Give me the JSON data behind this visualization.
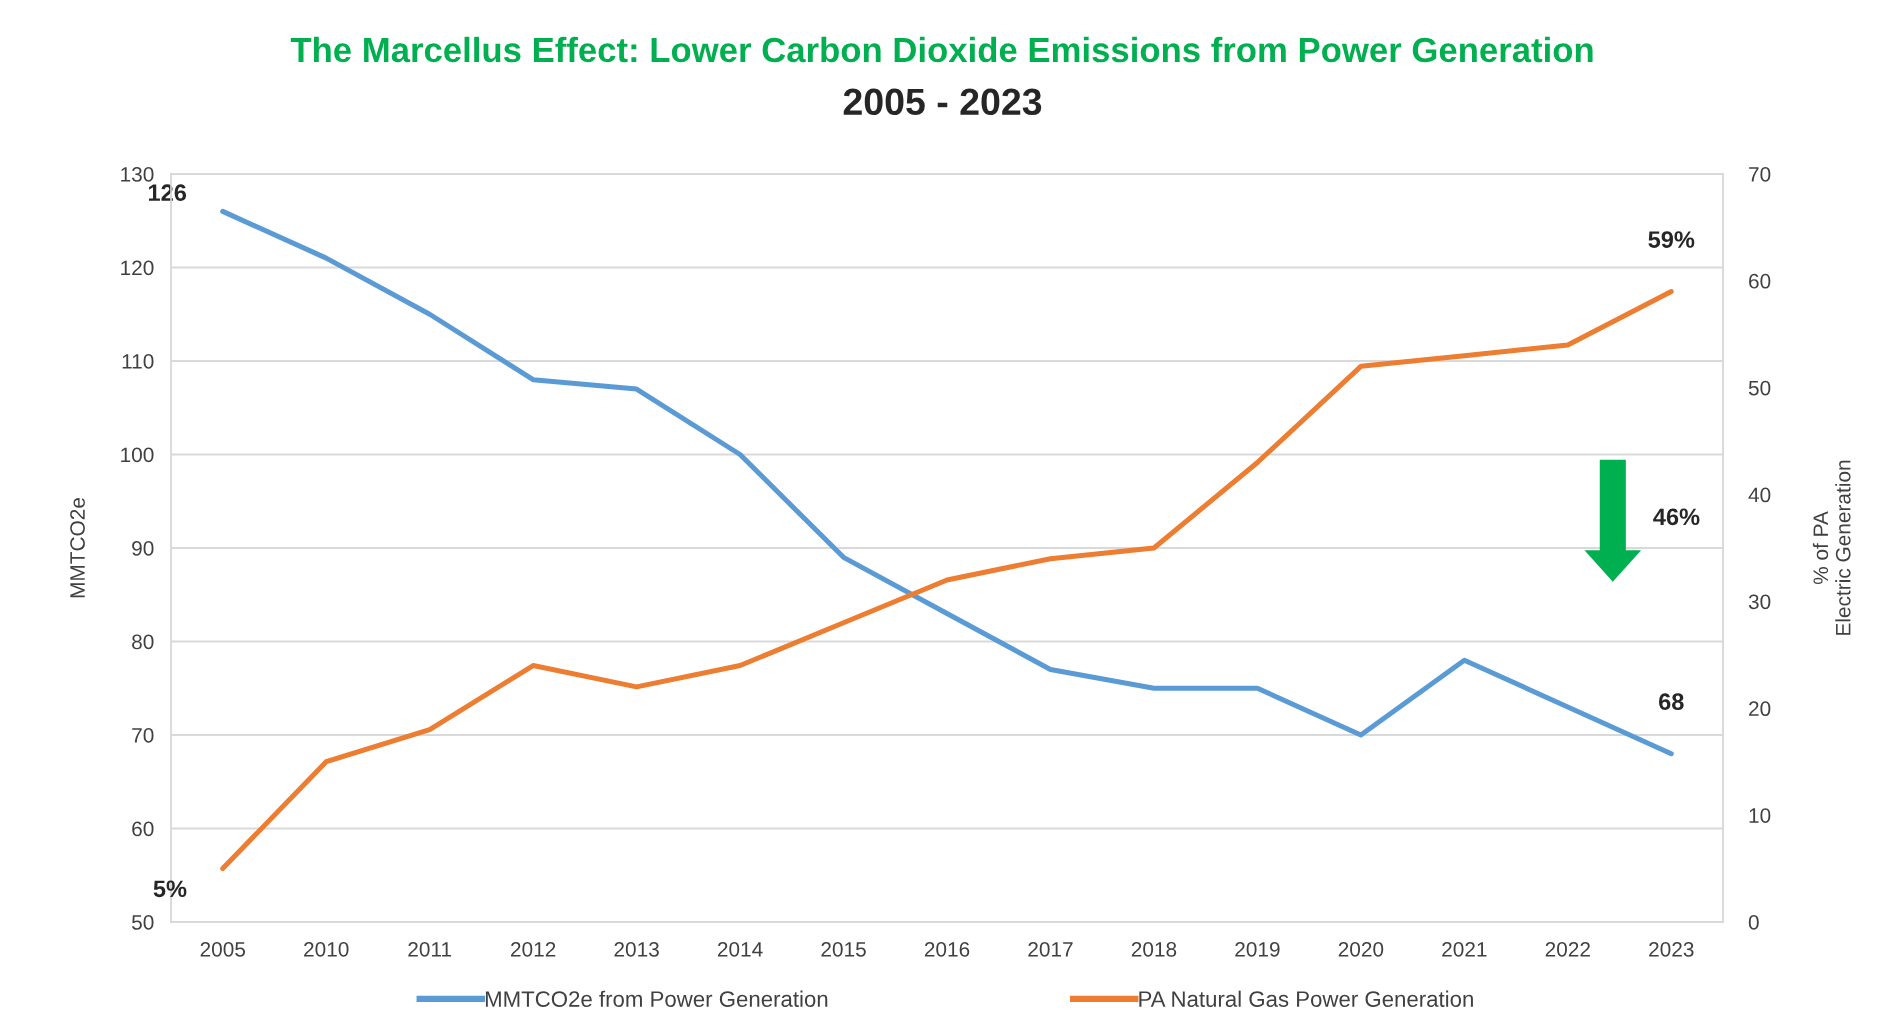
{
  "chart_data": {
    "type": "line",
    "title": "The Marcellus Effect: Lower Carbon Dioxide Emissions from Power Generation",
    "subtitle": "2005 - 2023",
    "ylabel": "MMTCO2e",
    "y2label": "% of PA\nElectric Generation",
    "categories": [
      "2005",
      "2010",
      "2011",
      "2012",
      "2013",
      "2014",
      "2015",
      "2016",
      "2017",
      "2018",
      "2019",
      "2020",
      "2021",
      "2022",
      "2023"
    ],
    "series": [
      {
        "name": "MMTCO2e from Power Generation",
        "color": "#5b9bd5",
        "values": [
          126,
          121,
          115,
          108,
          107,
          100,
          89,
          83,
          77,
          75,
          75,
          70,
          78,
          73,
          68
        ],
        "value_labels": [
          "126",
          null,
          null,
          null,
          null,
          null,
          null,
          null,
          null,
          null,
          null,
          null,
          null,
          null,
          "68"
        ]
      },
      {
        "name": "PA Natural Gas Power Generation",
        "color": "#ed7d31",
        "axis": "y2",
        "values": [
          5,
          15,
          18,
          24,
          22,
          24,
          28,
          32,
          34,
          35,
          43,
          52,
          53,
          54,
          59
        ],
        "value_labels": [
          "5%",
          null,
          null,
          null,
          null,
          null,
          null,
          null,
          null,
          null,
          null,
          null,
          null,
          null,
          "59%"
        ]
      }
    ],
    "ylim": [
      50,
      130
    ],
    "yticks": [
      50,
      60,
      70,
      80,
      90,
      100,
      110,
      120,
      130
    ],
    "y2lim": [
      0,
      70
    ],
    "y2ticks": [
      0,
      10,
      20,
      30,
      40,
      50,
      60,
      70
    ],
    "grid": "y",
    "legend": "bottom",
    "annotations": [
      "46%"
    ]
  }
}
